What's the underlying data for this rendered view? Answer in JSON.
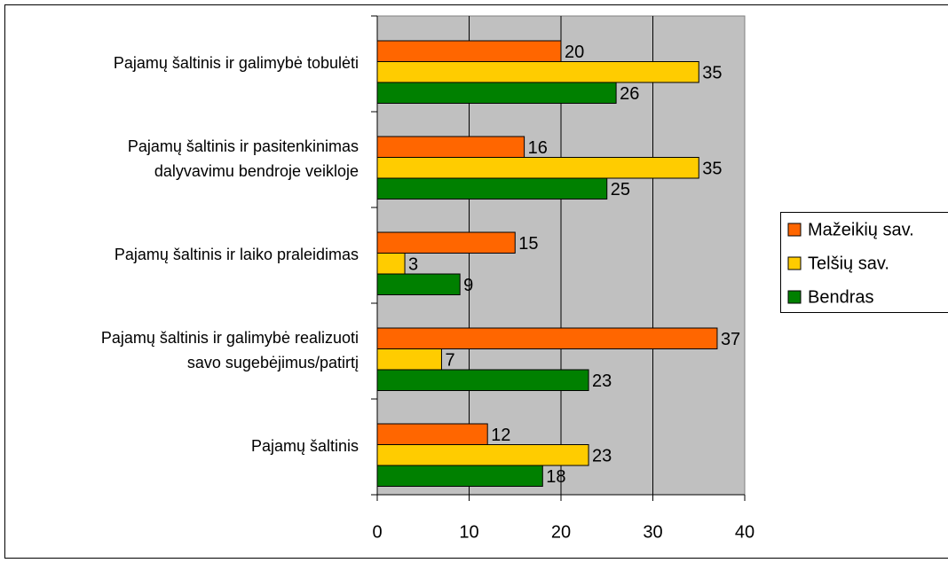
{
  "chart_data": {
    "type": "bar",
    "orientation": "horizontal",
    "categories": [
      [
        "Pajamų šaltinis ir galimybė tobulėti"
      ],
      [
        "Pajamų šaltinis ir pasitenkinimas",
        "dalyvavimu bendroje veikloje"
      ],
      [
        "Pajamų šaltinis ir laiko praleidimas"
      ],
      [
        "Pajamų šaltinis ir galimybė realizuoti",
        "savo sugebėjimus/patirtį"
      ],
      [
        "Pajamų šaltinis"
      ]
    ],
    "series": [
      {
        "name": "Mažeikių sav.",
        "color": "#ff6600",
        "values": [
          20,
          16,
          15,
          37,
          12
        ]
      },
      {
        "name": "Telšių sav.",
        "color": "#ffcc00",
        "values": [
          35,
          35,
          3,
          7,
          23
        ]
      },
      {
        "name": "Bendras",
        "color": "#008000",
        "values": [
          26,
          25,
          9,
          23,
          18
        ]
      }
    ],
    "xlim": [
      0,
      40
    ],
    "xticks": [
      0,
      10,
      20,
      30,
      40
    ],
    "grid": true,
    "legend": "right",
    "plot_background": "#c0c0c0"
  }
}
